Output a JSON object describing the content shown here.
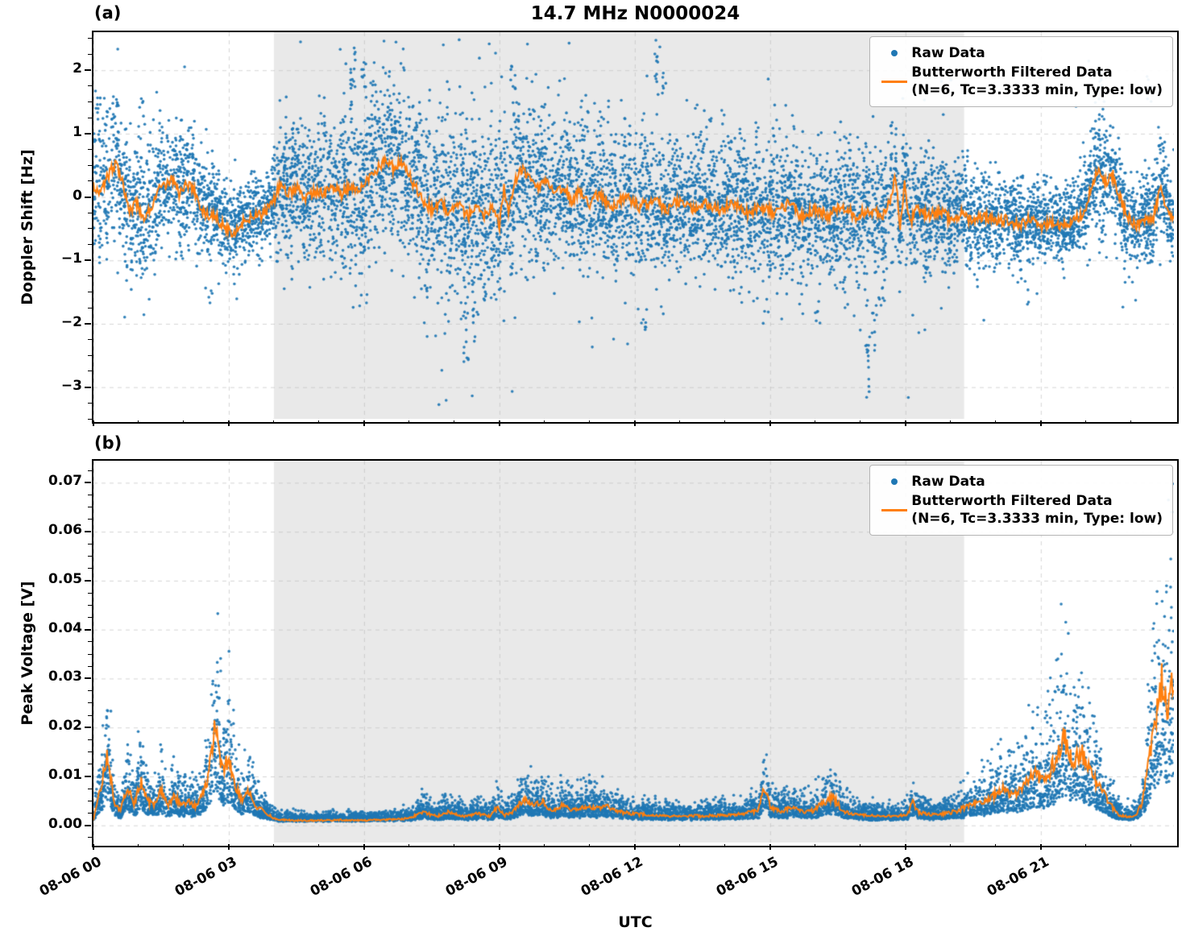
{
  "figure": {
    "title": "14.7 MHz N0000024",
    "xlabel": "UTC"
  },
  "colors": {
    "raw": "#1f77b4",
    "filtered": "#ff7f0e",
    "shade": "#e9e9e9",
    "grid": "#bfbfbf",
    "axis": "#000000",
    "bg": "#ffffff"
  },
  "legend": {
    "raw": "Raw Data",
    "filtered_line1": "Butterworth Filtered Data",
    "filtered_line2": "(N=6, Tc=3.3333 min, Type: low)"
  },
  "xaxis": {
    "label": "UTC",
    "minor_step": 1,
    "major": [
      {
        "h": 0,
        "label": "08-06 00"
      },
      {
        "h": 3,
        "label": "08-06 03"
      },
      {
        "h": 6,
        "label": "08-06 06"
      },
      {
        "h": 9,
        "label": "08-06 09"
      },
      {
        "h": 12,
        "label": "08-06 12"
      },
      {
        "h": 15,
        "label": "08-06 15"
      },
      {
        "h": 18,
        "label": "08-06 18"
      },
      {
        "h": 21,
        "label": "08-06 21"
      }
    ]
  },
  "chart_data": [
    {
      "type": "scatter",
      "panel_tag": "(a)",
      "title": "14.7 MHz N0000024",
      "ylabel": "Doppler Shift [Hz]",
      "xlim": [
        0,
        23.95
      ],
      "ylim": [
        -3.5,
        2.6
      ],
      "yticks": [
        2,
        1,
        0,
        -1,
        -2,
        -3
      ],
      "ytick_labels": [
        "2",
        "1",
        "0",
        "−1",
        "−2",
        "−3"
      ],
      "y_minor_step": 0.25,
      "shade_hours": [
        4.0,
        19.3
      ],
      "series_names": [
        "Raw Data",
        "Butterworth Filtered Data (N=6, Tc=3.3333 min, Type: low)"
      ],
      "filtered_xy": [
        [
          0,
          0.2
        ],
        [
          0.15,
          0.05
        ],
        [
          0.3,
          0.3
        ],
        [
          0.5,
          0.55
        ],
        [
          0.65,
          0.25
        ],
        [
          0.8,
          -0.25
        ],
        [
          0.95,
          -0.1
        ],
        [
          1.1,
          -0.35
        ],
        [
          1.25,
          -0.2
        ],
        [
          1.45,
          0.1
        ],
        [
          1.6,
          0.2
        ],
        [
          1.75,
          0.3
        ],
        [
          1.9,
          0.05
        ],
        [
          2.05,
          0.2
        ],
        [
          2.2,
          0.15
        ],
        [
          2.35,
          -0.1
        ],
        [
          2.5,
          -0.3
        ],
        [
          2.65,
          -0.25
        ],
        [
          2.8,
          -0.4
        ],
        [
          2.95,
          -0.5
        ],
        [
          3.1,
          -0.55
        ],
        [
          3.25,
          -0.45
        ],
        [
          3.4,
          -0.35
        ],
        [
          3.55,
          -0.3
        ],
        [
          3.7,
          -0.3
        ],
        [
          3.85,
          -0.2
        ],
        [
          4,
          -0.05
        ],
        [
          4.15,
          0.2
        ],
        [
          4.3,
          0.05
        ],
        [
          4.5,
          0.15
        ],
        [
          4.7,
          0
        ],
        [
          4.9,
          0.1
        ],
        [
          5.1,
          0.05
        ],
        [
          5.3,
          0.15
        ],
        [
          5.5,
          0.05
        ],
        [
          5.7,
          0.2
        ],
        [
          5.9,
          0.1
        ],
        [
          6.1,
          0.3
        ],
        [
          6.3,
          0.45
        ],
        [
          6.5,
          0.6
        ],
        [
          6.65,
          0.45
        ],
        [
          6.8,
          0.55
        ],
        [
          6.95,
          0.4
        ],
        [
          7.1,
          0.2
        ],
        [
          7.3,
          -0.05
        ],
        [
          7.5,
          -0.2
        ],
        [
          7.7,
          -0.1
        ],
        [
          7.9,
          -0.25
        ],
        [
          8.1,
          -0.15
        ],
        [
          8.3,
          -0.3
        ],
        [
          8.5,
          -0.2
        ],
        [
          8.7,
          -0.3
        ],
        [
          8.85,
          -0.15
        ],
        [
          9,
          -0.45
        ],
        [
          9.1,
          0.15
        ],
        [
          9.2,
          -0.3
        ],
        [
          9.35,
          0.25
        ],
        [
          9.5,
          0.45
        ],
        [
          9.65,
          0.3
        ],
        [
          9.8,
          0.15
        ],
        [
          10,
          0.25
        ],
        [
          10.2,
          0.05
        ],
        [
          10.4,
          0.15
        ],
        [
          10.6,
          -0.05
        ],
        [
          10.8,
          0.1
        ],
        [
          11,
          -0.1
        ],
        [
          11.2,
          0.05
        ],
        [
          11.5,
          -0.15
        ],
        [
          11.8,
          0
        ],
        [
          12.1,
          -0.15
        ],
        [
          12.4,
          -0.05
        ],
        [
          12.7,
          -0.2
        ],
        [
          13,
          -0.05
        ],
        [
          13.3,
          -0.2
        ],
        [
          13.6,
          -0.1
        ],
        [
          13.9,
          -0.2
        ],
        [
          14.2,
          -0.1
        ],
        [
          14.5,
          -0.25
        ],
        [
          14.8,
          -0.15
        ],
        [
          15.1,
          -0.25
        ],
        [
          15.4,
          -0.1
        ],
        [
          15.7,
          -0.3
        ],
        [
          16,
          -0.2
        ],
        [
          16.3,
          -0.3
        ],
        [
          16.6,
          -0.15
        ],
        [
          16.9,
          -0.3
        ],
        [
          17.2,
          -0.2
        ],
        [
          17.5,
          -0.3
        ],
        [
          17.65,
          -0.05
        ],
        [
          17.78,
          0.35
        ],
        [
          17.88,
          -0.55
        ],
        [
          17.98,
          0.25
        ],
        [
          18.1,
          -0.45
        ],
        [
          18.25,
          -0.15
        ],
        [
          18.5,
          -0.3
        ],
        [
          18.75,
          -0.2
        ],
        [
          19,
          -0.35
        ],
        [
          19.25,
          -0.25
        ],
        [
          19.5,
          -0.4
        ],
        [
          19.75,
          -0.3
        ],
        [
          20,
          -0.4
        ],
        [
          20.25,
          -0.35
        ],
        [
          20.5,
          -0.45
        ],
        [
          20.75,
          -0.35
        ],
        [
          21,
          -0.45
        ],
        [
          21.25,
          -0.4
        ],
        [
          21.5,
          -0.45
        ],
        [
          21.75,
          -0.35
        ],
        [
          21.95,
          -0.25
        ],
        [
          22.15,
          0.25
        ],
        [
          22.3,
          0.45
        ],
        [
          22.45,
          0.2
        ],
        [
          22.6,
          0.35
        ],
        [
          22.75,
          0
        ],
        [
          22.9,
          -0.3
        ],
        [
          23.1,
          -0.45
        ],
        [
          23.3,
          -0.35
        ],
        [
          23.5,
          -0.3
        ],
        [
          23.65,
          0.1
        ],
        [
          23.8,
          -0.15
        ],
        [
          23.95,
          -0.4
        ]
      ],
      "line_noise_amp": 0.09,
      "scatter": {
        "n": 9500,
        "tail_prob": 0.05,
        "tail_mult": 2.1,
        "clamp": [
          -3.3,
          2.5
        ],
        "sigma_xy": [
          [
            0,
            0.6
          ],
          [
            0.8,
            0.5
          ],
          [
            1.5,
            0.45
          ],
          [
            2.5,
            0.4
          ],
          [
            3.2,
            0.32
          ],
          [
            3.8,
            0.3
          ],
          [
            4.1,
            0.5
          ],
          [
            5,
            0.6
          ],
          [
            6,
            0.62
          ],
          [
            7,
            0.65
          ],
          [
            8,
            0.7
          ],
          [
            8.6,
            0.68
          ],
          [
            9.2,
            0.6
          ],
          [
            10,
            0.6
          ],
          [
            11,
            0.58
          ],
          [
            12,
            0.55
          ],
          [
            13,
            0.52
          ],
          [
            14,
            0.5
          ],
          [
            15,
            0.55
          ],
          [
            16,
            0.52
          ],
          [
            17,
            0.55
          ],
          [
            18,
            0.5
          ],
          [
            18.8,
            0.45
          ],
          [
            19.5,
            0.4
          ],
          [
            20,
            0.34
          ],
          [
            21,
            0.3
          ],
          [
            21.8,
            0.3
          ],
          [
            22.3,
            0.48
          ],
          [
            22.8,
            0.34
          ],
          [
            23.3,
            0.3
          ],
          [
            23.6,
            0.42
          ],
          [
            23.95,
            0.32
          ]
        ]
      },
      "outlier_streaks": [
        [
          0.1,
          1.3,
          1.75,
          8
        ],
        [
          0.55,
          1.4,
          1.7,
          5
        ],
        [
          1.05,
          1.2,
          1.6,
          5
        ],
        [
          2.6,
          -1.3,
          -1.7,
          4
        ],
        [
          5.75,
          1.7,
          2.45,
          14
        ],
        [
          6.0,
          1.6,
          2.2,
          9
        ],
        [
          6.2,
          1.5,
          2.0,
          6
        ],
        [
          8.25,
          -1.8,
          -2.65,
          12
        ],
        [
          8.45,
          -1.6,
          -2.3,
          8
        ],
        [
          9.3,
          1.7,
          2.25,
          8
        ],
        [
          12.5,
          1.8,
          2.5,
          10
        ],
        [
          12.65,
          1.6,
          2.1,
          6
        ],
        [
          12.2,
          -1.9,
          -2.35,
          5
        ],
        [
          14.9,
          -1.6,
          -2.0,
          4
        ],
        [
          16.05,
          -1.6,
          -2.1,
          6
        ],
        [
          17.15,
          -1.9,
          -3.2,
          14
        ],
        [
          17.3,
          -1.6,
          -2.45,
          9
        ],
        [
          17.45,
          -1.4,
          -1.9,
          5
        ],
        [
          20.7,
          -1.3,
          -1.7,
          4
        ],
        [
          22.35,
          1.4,
          2.0,
          9
        ],
        [
          23.4,
          1.5,
          1.95,
          6
        ]
      ]
    },
    {
      "type": "scatter",
      "panel_tag": "(b)",
      "ylabel": "Peak Voltage [V]",
      "xlim": [
        0,
        23.95
      ],
      "ylim": [
        -0.0035,
        0.0745
      ],
      "yticks": [
        0,
        0.01,
        0.02,
        0.03,
        0.04,
        0.05,
        0.06,
        0.07
      ],
      "ytick_labels": [
        "0.00",
        "0.01",
        "0.02",
        "0.03",
        "0.04",
        "0.05",
        "0.06",
        "0.07"
      ],
      "y_minor_step": 0.0025,
      "shade_hours": [
        4.0,
        19.3
      ],
      "series_names": [
        "Raw Data",
        "Butterworth Filtered Data (N=6, Tc=3.3333 min, Type: low)"
      ],
      "filtered_xy": [
        [
          0,
          0.0012
        ],
        [
          0.2,
          0.009
        ],
        [
          0.3,
          0.015
        ],
        [
          0.45,
          0.005
        ],
        [
          0.6,
          0.003
        ],
        [
          0.75,
          0.008
        ],
        [
          0.9,
          0.004
        ],
        [
          1.05,
          0.009
        ],
        [
          1.2,
          0.005
        ],
        [
          1.35,
          0.004
        ],
        [
          1.5,
          0.007
        ],
        [
          1.65,
          0.004
        ],
        [
          1.8,
          0.006
        ],
        [
          1.95,
          0.004
        ],
        [
          2.1,
          0.005
        ],
        [
          2.25,
          0.004
        ],
        [
          2.4,
          0.006
        ],
        [
          2.55,
          0.01
        ],
        [
          2.7,
          0.02
        ],
        [
          2.85,
          0.011
        ],
        [
          3,
          0.014
        ],
        [
          3.15,
          0.008
        ],
        [
          3.3,
          0.005
        ],
        [
          3.45,
          0.007
        ],
        [
          3.6,
          0.004
        ],
        [
          3.75,
          0.003
        ],
        [
          3.9,
          0.002
        ],
        [
          4.05,
          0.0012
        ],
        [
          4.5,
          0.001
        ],
        [
          5,
          0.001
        ],
        [
          5.5,
          0.0011
        ],
        [
          6,
          0.001
        ],
        [
          6.5,
          0.0012
        ],
        [
          7,
          0.0014
        ],
        [
          7.3,
          0.0028
        ],
        [
          7.6,
          0.0018
        ],
        [
          7.9,
          0.0028
        ],
        [
          8.2,
          0.0018
        ],
        [
          8.5,
          0.0024
        ],
        [
          8.8,
          0.0018
        ],
        [
          8.95,
          0.0038
        ],
        [
          9.1,
          0.002
        ],
        [
          9.3,
          0.0028
        ],
        [
          9.55,
          0.0055
        ],
        [
          9.75,
          0.004
        ],
        [
          9.95,
          0.005
        ],
        [
          10.15,
          0.003
        ],
        [
          10.4,
          0.0042
        ],
        [
          10.65,
          0.003
        ],
        [
          10.9,
          0.004
        ],
        [
          11.15,
          0.0034
        ],
        [
          11.4,
          0.0038
        ],
        [
          11.65,
          0.0028
        ],
        [
          11.9,
          0.0024
        ],
        [
          12.2,
          0.0022
        ],
        [
          12.6,
          0.0019
        ],
        [
          13,
          0.0019
        ],
        [
          13.4,
          0.0019
        ],
        [
          13.8,
          0.002
        ],
        [
          14.2,
          0.0022
        ],
        [
          14.55,
          0.0026
        ],
        [
          14.75,
          0.0032
        ],
        [
          14.85,
          0.008
        ],
        [
          15,
          0.004
        ],
        [
          15.2,
          0.0028
        ],
        [
          15.45,
          0.0036
        ],
        [
          15.7,
          0.0028
        ],
        [
          15.95,
          0.003
        ],
        [
          16.2,
          0.0048
        ],
        [
          16.4,
          0.0058
        ],
        [
          16.6,
          0.003
        ],
        [
          16.9,
          0.0022
        ],
        [
          17.3,
          0.0019
        ],
        [
          17.7,
          0.0019
        ],
        [
          18.05,
          0.0022
        ],
        [
          18.15,
          0.0048
        ],
        [
          18.3,
          0.0026
        ],
        [
          18.6,
          0.0022
        ],
        [
          18.9,
          0.0024
        ],
        [
          19.15,
          0.003
        ],
        [
          19.4,
          0.004
        ],
        [
          19.65,
          0.0048
        ],
        [
          19.9,
          0.0056
        ],
        [
          20.15,
          0.0075
        ],
        [
          20.4,
          0.0062
        ],
        [
          20.65,
          0.0088
        ],
        [
          20.9,
          0.0105
        ],
        [
          21.1,
          0.0092
        ],
        [
          21.3,
          0.013
        ],
        [
          21.5,
          0.0185
        ],
        [
          21.7,
          0.013
        ],
        [
          21.9,
          0.0148
        ],
        [
          22.1,
          0.0105
        ],
        [
          22.3,
          0.0078
        ],
        [
          22.5,
          0.0048
        ],
        [
          22.7,
          0.0022
        ],
        [
          22.9,
          0.0018
        ],
        [
          23.1,
          0.002
        ],
        [
          23.25,
          0.0045
        ],
        [
          23.4,
          0.013
        ],
        [
          23.55,
          0.022
        ],
        [
          23.7,
          0.03
        ],
        [
          23.8,
          0.024
        ],
        [
          23.9,
          0.029
        ],
        [
          23.95,
          0.026
        ]
      ],
      "line_noise_frac": 0.15,
      "scatter_b": {
        "n": 9500,
        "base": 0.0006,
        "core_min": 0.3,
        "core_gauss": 0.6,
        "tail_prob": 0.1,
        "tail_base": 1.3,
        "tail_gauss": 0.6,
        "local_cap_mult": 2.6,
        "cap": 0.0715,
        "floor": 0.0007
      }
    }
  ]
}
